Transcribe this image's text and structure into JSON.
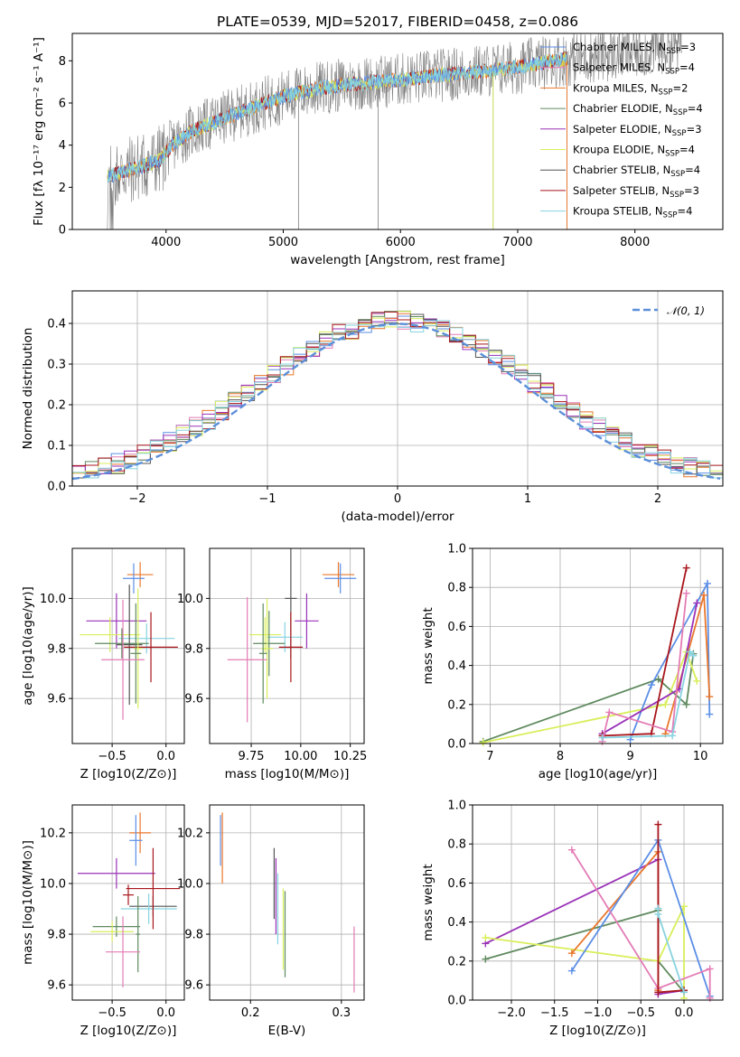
{
  "figure_title": "PLATE=0539, MJD=52017, FIBERID=0458, z=0.086",
  "colors": {
    "chabrier_miles": "#5b8ee6",
    "salpeter_miles": "#9a32b8",
    "kroupa_miles": "#e9772b",
    "chabrier_elodie": "#5f8a5f",
    "salpeter_elodie": "#9a32b8",
    "kroupa_elodie": "#d9ee5a",
    "chabrier_stelib": "#555555",
    "salpeter_stelib": "#a8151c",
    "kroupa_stelib": "#86d3e0",
    "pink": "#e37cb5",
    "data": "#808080"
  },
  "chart_data": [
    {
      "id": "spectrum",
      "type": "line",
      "xlabel": "wavelength [Angstrom, rest frame]",
      "ylabel": "Flux [fλ 10⁻¹⁷ erg cm⁻² s⁻¹ A⁻¹]",
      "xlim": [
        3200,
        8750
      ],
      "ylim": [
        0,
        9.3
      ],
      "xticks": [
        4000,
        5000,
        6000,
        7000,
        8000
      ],
      "yticks": [
        0,
        2,
        4,
        6,
        8
      ],
      "legend_position": "upper right",
      "legend": [
        {
          "label": "Chabrier MILES, N_SSP=3",
          "color_key": "chabrier_miles"
        },
        {
          "label": "Salpeter MILES, N_SSP=4",
          "color_key": "pink"
        },
        {
          "label": "Kroupa MILES, N_SSP=2",
          "color_key": "kroupa_miles"
        },
        {
          "label": "Chabrier ELODIE, N_SSP=4",
          "color_key": "chabrier_elodie"
        },
        {
          "label": "Salpeter ELODIE, N_SSP=3",
          "color_key": "salpeter_elodie"
        },
        {
          "label": "Kroupa ELODIE, N_SSP=4",
          "color_key": "kroupa_elodie"
        },
        {
          "label": "Chabrier STELIB, N_SSP=4",
          "color_key": "chabrier_stelib"
        },
        {
          "label": "Salpeter STELIB, N_SSP=3",
          "color_key": "salpeter_stelib"
        },
        {
          "label": "Kroupa STELIB, N_SSP=4",
          "color_key": "kroupa_stelib"
        }
      ],
      "continuum": [
        [
          3500,
          2.5
        ],
        [
          3800,
          3.0
        ],
        [
          3950,
          3.3
        ],
        [
          4050,
          4.0
        ],
        [
          4200,
          4.6
        ],
        [
          4500,
          5.3
        ],
        [
          4800,
          5.9
        ],
        [
          5000,
          6.3
        ],
        [
          5300,
          6.7
        ],
        [
          5600,
          6.9
        ],
        [
          6000,
          7.1
        ],
        [
          6300,
          7.3
        ],
        [
          6600,
          7.45
        ],
        [
          7000,
          7.7
        ],
        [
          7300,
          8.0
        ],
        [
          7600,
          8.2
        ],
        [
          8000,
          8.4
        ],
        [
          8200,
          8.6
        ],
        [
          8400,
          8.8
        ]
      ],
      "spikes": [
        [
          5130,
          0
        ],
        [
          5810,
          0
        ],
        [
          6790,
          0
        ],
        [
          7420,
          0
        ]
      ]
    },
    {
      "id": "residuals",
      "type": "histogram",
      "xlabel": "(data-model)/error",
      "ylabel": "Normed distribution",
      "xlim": [
        -2.5,
        2.5
      ],
      "ylim": [
        0,
        0.48
      ],
      "xticks": [
        -2,
        -1,
        0,
        1,
        2
      ],
      "yticks": [
        0.0,
        0.1,
        0.2,
        0.3,
        0.4
      ],
      "legend": [
        {
          "label": "𝒩(0, 1)"
        }
      ],
      "legend_position": "upper right",
      "bin_width": 0.1
    },
    {
      "id": "age_vs_Z",
      "type": "errorbar",
      "xlabel": "Z [log10(Z/Z⊙)]",
      "ylabel": "age  [log10(age/yr)]",
      "xlim": [
        -0.87,
        0.17
      ],
      "ylim": [
        9.42,
        10.2
      ],
      "xticks": [
        -0.5,
        0.0
      ],
      "yticks": [
        9.6,
        9.8,
        10.0
      ],
      "points": [
        {
          "x": -0.24,
          "y": 10.095,
          "xerr": 0.12,
          "yerr": 0.05,
          "color_key": "kroupa_miles"
        },
        {
          "x": -0.3,
          "y": 10.08,
          "xerr": 0.1,
          "yerr": 0.06,
          "color_key": "chabrier_miles"
        },
        {
          "x": -0.46,
          "y": 9.91,
          "xerr": 0.28,
          "yerr": 0.11,
          "color_key": "salpeter_elodie"
        },
        {
          "x": -0.52,
          "y": 9.855,
          "xerr": 0.28,
          "yerr": 0.07,
          "color_key": "kroupa_elodie"
        },
        {
          "x": -0.18,
          "y": 9.84,
          "xerr": 0.26,
          "yerr": 0.06,
          "color_key": "kroupa_stelib"
        },
        {
          "x": -0.41,
          "y": 9.82,
          "xerr": 0.25,
          "yerr": 0.06,
          "color_key": "chabrier_elodie"
        },
        {
          "x": -0.34,
          "y": 9.815,
          "xerr": 0.12,
          "yerr": 0.24,
          "color_key": "chabrier_stelib"
        },
        {
          "x": -0.14,
          "y": 9.805,
          "xerr": 0.25,
          "yerr": 0.14,
          "color_key": "salpeter_stelib"
        },
        {
          "x": -0.26,
          "y": 9.8,
          "xerr": 0.04,
          "yerr": 0.24,
          "color_key": "kroupa_elodie"
        },
        {
          "x": -0.28,
          "y": 9.78,
          "xerr": 0.05,
          "yerr": 0.2,
          "color_key": "chabrier_elodie"
        },
        {
          "x": -0.4,
          "y": 9.755,
          "xerr": 0.2,
          "yerr": 0.24,
          "color_key": "pink"
        }
      ]
    },
    {
      "id": "age_vs_mass",
      "type": "errorbar",
      "xlabel": "mass [log10(M/M⊙)]",
      "ylabel": "",
      "xlim": [
        9.54,
        10.32
      ],
      "ylim": [
        9.42,
        10.2
      ],
      "xticks": [
        9.75,
        10.0,
        10.25
      ],
      "xticklabels": [
        "9.75",
        "10.00",
        "10.25"
      ],
      "yticks": [
        9.6,
        9.8,
        10.0
      ],
      "points": [
        {
          "x": 10.19,
          "y": 10.095,
          "xerr": 0.08,
          "yerr": 0.05,
          "color_key": "kroupa_miles"
        },
        {
          "x": 10.2,
          "y": 10.08,
          "xerr": 0.08,
          "yerr": 0.06,
          "color_key": "chabrier_miles"
        },
        {
          "x": 9.95,
          "y": 10.0,
          "xerr": 0.03,
          "yerr": 0.24,
          "color_key": "chabrier_stelib"
        },
        {
          "x": 10.03,
          "y": 9.91,
          "xerr": 0.06,
          "yerr": 0.11,
          "color_key": "salpeter_elodie"
        },
        {
          "x": 9.82,
          "y": 9.855,
          "xerr": 0.08,
          "yerr": 0.07,
          "color_key": "kroupa_elodie"
        },
        {
          "x": 9.92,
          "y": 9.845,
          "xerr": 0.09,
          "yerr": 0.06,
          "color_key": "kroupa_stelib"
        },
        {
          "x": 9.84,
          "y": 9.82,
          "xerr": 0.08,
          "yerr": 0.13,
          "color_key": "chabrier_elodie"
        },
        {
          "x": 9.95,
          "y": 9.805,
          "xerr": 0.06,
          "yerr": 0.14,
          "color_key": "salpeter_stelib"
        },
        {
          "x": 9.83,
          "y": 9.8,
          "xerr": 0.03,
          "yerr": 0.2,
          "color_key": "kroupa_elodie"
        },
        {
          "x": 9.81,
          "y": 9.78,
          "xerr": 0.02,
          "yerr": 0.2,
          "color_key": "chabrier_elodie"
        },
        {
          "x": 9.73,
          "y": 9.755,
          "xerr": 0.1,
          "yerr": 0.25,
          "color_key": "pink"
        }
      ]
    },
    {
      "id": "mass_weight_vs_age",
      "type": "line",
      "xlabel": "age  [log10(age/yr)]",
      "ylabel": "mass weight",
      "xlim": [
        6.75,
        10.32
      ],
      "ylim": [
        0,
        1.0
      ],
      "xticks": [
        7,
        8,
        9,
        10
      ],
      "yticks": [
        0.0,
        0.2,
        0.4,
        0.6,
        0.8,
        1.0
      ],
      "series": [
        {
          "color_key": "chabrier_elodie",
          "points": [
            [
              6.9,
              0.01
            ],
            [
              9.4,
              0.33
            ],
            [
              9.8,
              0.2
            ],
            [
              9.9,
              0.46
            ]
          ]
        },
        {
          "color_key": "kroupa_elodie",
          "points": [
            [
              6.9,
              0.005
            ],
            [
              9.5,
              0.2
            ],
            [
              9.8,
              0.47
            ],
            [
              9.95,
              0.32
            ]
          ]
        },
        {
          "color_key": "chabrier_miles",
          "points": [
            [
              9.0,
              0.02
            ],
            [
              9.3,
              0.3
            ],
            [
              10.1,
              0.82
            ],
            [
              10.13,
              0.15
            ]
          ]
        },
        {
          "color_key": "kroupa_miles",
          "points": [
            [
              9.5,
              0.05
            ],
            [
              10.05,
              0.76
            ],
            [
              10.13,
              0.24
            ]
          ]
        },
        {
          "color_key": "salpeter_elodie",
          "points": [
            [
              8.6,
              0.05
            ],
            [
              9.7,
              0.28
            ],
            [
              9.95,
              0.72
            ]
          ]
        },
        {
          "color_key": "salpeter_stelib",
          "points": [
            [
              8.6,
              0.04
            ],
            [
              9.3,
              0.05
            ],
            [
              9.8,
              0.9
            ]
          ]
        },
        {
          "color_key": "pink",
          "points": [
            [
              8.6,
              0.01
            ],
            [
              8.7,
              0.16
            ],
            [
              9.6,
              0.06
            ],
            [
              9.8,
              0.77
            ]
          ]
        },
        {
          "color_key": "kroupa_stelib",
          "points": [
            [
              8.6,
              0.03
            ],
            [
              9.6,
              0.04
            ],
            [
              9.85,
              0.47
            ],
            [
              9.9,
              0.45
            ]
          ]
        }
      ]
    },
    {
      "id": "mass_vs_Z",
      "type": "errorbar",
      "xlabel": "Z [log10(Z/Z⊙)]",
      "ylabel": "mass [log10(M/M⊙)]",
      "xlim": [
        -0.87,
        0.17
      ],
      "ylim": [
        9.54,
        10.31
      ],
      "xticks": [
        -0.5,
        0.0
      ],
      "yticks": [
        9.6,
        9.8,
        10.0,
        10.2
      ],
      "points": [
        {
          "x": -0.24,
          "y": 10.2,
          "xerr": 0.1,
          "yerr": 0.08,
          "color_key": "kroupa_miles"
        },
        {
          "x": -0.28,
          "y": 10.17,
          "xerr": 0.06,
          "yerr": 0.1,
          "color_key": "chabrier_miles"
        },
        {
          "x": -0.46,
          "y": 10.04,
          "xerr": 0.36,
          "yerr": 0.06,
          "color_key": "salpeter_elodie"
        },
        {
          "x": -0.12,
          "y": 9.91,
          "xerr": 0.22,
          "yerr": 0.04,
          "color_key": "chabrier_stelib"
        },
        {
          "x": -0.16,
          "y": 9.9,
          "xerr": 0.26,
          "yerr": 0.06,
          "color_key": "kroupa_stelib"
        },
        {
          "x": -0.35,
          "y": 9.955,
          "xerr": 0.05,
          "yerr": 0.04,
          "color_key": "salpeter_stelib"
        },
        {
          "x": -0.12,
          "y": 9.98,
          "xerr": 0.25,
          "yerr": 0.16,
          "color_key": "salpeter_stelib"
        },
        {
          "x": -0.46,
          "y": 9.83,
          "xerr": 0.22,
          "yerr": 0.04,
          "color_key": "chabrier_elodie"
        },
        {
          "x": -0.5,
          "y": 9.81,
          "xerr": 0.2,
          "yerr": 0.04,
          "color_key": "kroupa_elodie"
        },
        {
          "x": -0.26,
          "y": 9.8,
          "xerr": 0.02,
          "yerr": 0.15,
          "color_key": "chabrier_elodie"
        },
        {
          "x": -0.4,
          "y": 9.73,
          "xerr": 0.16,
          "yerr": 0.14,
          "color_key": "pink"
        }
      ]
    },
    {
      "id": "mass_vs_ebv",
      "type": "errorbar",
      "xlabel": "E(B-V)",
      "ylabel": "",
      "xlim": [
        0.155,
        0.325
      ],
      "ylim": [
        9.54,
        10.31
      ],
      "xticks": [
        0.2,
        0.3
      ],
      "yticks": [
        9.6,
        9.8,
        10.0,
        10.2
      ],
      "points": [
        {
          "x": 0.167,
          "y": 10.17,
          "xerr": 0.0,
          "yerr": 0.1,
          "color_key": "chabrier_miles"
        },
        {
          "x": 0.169,
          "y": 10.14,
          "xerr": 0.0,
          "yerr": 0.14,
          "color_key": "kroupa_miles"
        },
        {
          "x": 0.226,
          "y": 10.0,
          "xerr": 0.0,
          "yerr": 0.14,
          "color_key": "chabrier_stelib"
        },
        {
          "x": 0.228,
          "y": 9.95,
          "xerr": 0.0,
          "yerr": 0.15,
          "color_key": "salpeter_elodie"
        },
        {
          "x": 0.23,
          "y": 9.9,
          "xerr": 0.0,
          "yerr": 0.14,
          "color_key": "kroupa_stelib"
        },
        {
          "x": 0.236,
          "y": 9.82,
          "xerr": 0.0,
          "yerr": 0.16,
          "color_key": "kroupa_elodie"
        },
        {
          "x": 0.238,
          "y": 9.8,
          "xerr": 0.0,
          "yerr": 0.17,
          "color_key": "chabrier_elodie"
        },
        {
          "x": 0.314,
          "y": 9.7,
          "xerr": 0.0,
          "yerr": 0.13,
          "color_key": "pink"
        }
      ]
    },
    {
      "id": "mass_weight_vs_Z",
      "type": "line",
      "xlabel": "Z [log10(Z/Z⊙)]",
      "ylabel": "mass weight",
      "xlim": [
        -2.45,
        0.45
      ],
      "ylim": [
        0,
        1.0
      ],
      "xticks": [
        -2.0,
        -1.5,
        -1.0,
        -0.5,
        0.0
      ],
      "yticks": [
        0.0,
        0.2,
        0.4,
        0.6,
        0.8,
        1.0
      ],
      "series": [
        {
          "color_key": "salpeter_elodie",
          "points": [
            [
              -2.3,
              0.29
            ],
            [
              -0.3,
              0.72
            ],
            [
              -0.3,
              0.03
            ],
            [
              0.0,
              0.05
            ]
          ]
        },
        {
          "color_key": "chabrier_elodie",
          "points": [
            [
              -2.3,
              0.21
            ],
            [
              -0.3,
              0.46
            ],
            [
              -0.3,
              0.2
            ],
            [
              0.0,
              0.04
            ]
          ]
        },
        {
          "color_key": "kroupa_elodie",
          "points": [
            [
              -2.3,
              0.32
            ],
            [
              -0.3,
              0.2
            ],
            [
              0.0,
              0.48
            ],
            [
              0.0,
              0.01
            ]
          ]
        },
        {
          "color_key": "kroupa_miles",
          "points": [
            [
              -1.3,
              0.24
            ],
            [
              -0.3,
              0.76
            ],
            [
              -0.3,
              0.05
            ]
          ]
        },
        {
          "color_key": "chabrier_miles",
          "points": [
            [
              -1.3,
              0.15
            ],
            [
              -0.3,
              0.82
            ],
            [
              0.3,
              0.02
            ]
          ]
        },
        {
          "color_key": "pink",
          "points": [
            [
              -1.3,
              0.77
            ],
            [
              -0.3,
              0.06
            ],
            [
              0.3,
              0.16
            ],
            [
              0.3,
              0.01
            ]
          ]
        },
        {
          "color_key": "salpeter_stelib",
          "points": [
            [
              -0.3,
              0.9
            ],
            [
              -0.3,
              0.04
            ],
            [
              0.0,
              0.05
            ]
          ]
        },
        {
          "color_key": "kroupa_stelib",
          "points": [
            [
              -0.3,
              0.47
            ],
            [
              -0.3,
              0.44
            ],
            [
              0.0,
              0.04
            ]
          ]
        }
      ]
    }
  ]
}
